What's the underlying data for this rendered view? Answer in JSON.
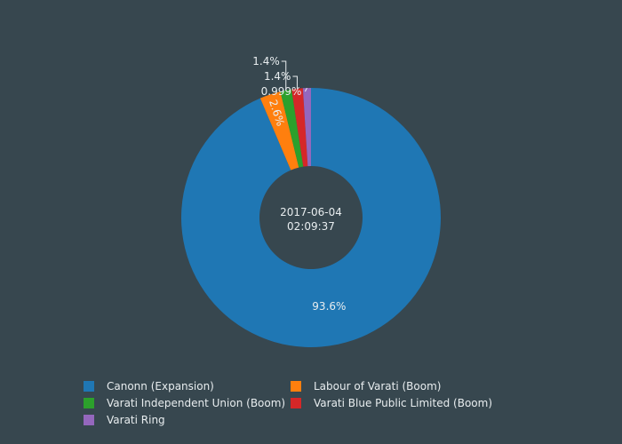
{
  "chart_data": {
    "type": "pie",
    "hole": true,
    "center_label": [
      "2017-06-04",
      "02:09:37"
    ],
    "legend_placement": "bottom",
    "slices": [
      {
        "name": "Canonn (Expansion)",
        "value": 93.6,
        "label": "93.6%",
        "color": "#1f77b4"
      },
      {
        "name": "Labour of Varati (Boom)",
        "value": 2.6,
        "label": "2.6%",
        "color": "#ff7f0e"
      },
      {
        "name": "Varati Independent Union (Boom)",
        "value": 1.4,
        "label": "1.4%",
        "color": "#2ca02c"
      },
      {
        "name": "Varati Blue Public Limited (Boom)",
        "value": 1.4,
        "label": "1.4%",
        "color": "#d62728"
      },
      {
        "name": "Varati Ring",
        "value": 0.999,
        "label": "0.999%",
        "color": "#9467bd"
      }
    ]
  }
}
